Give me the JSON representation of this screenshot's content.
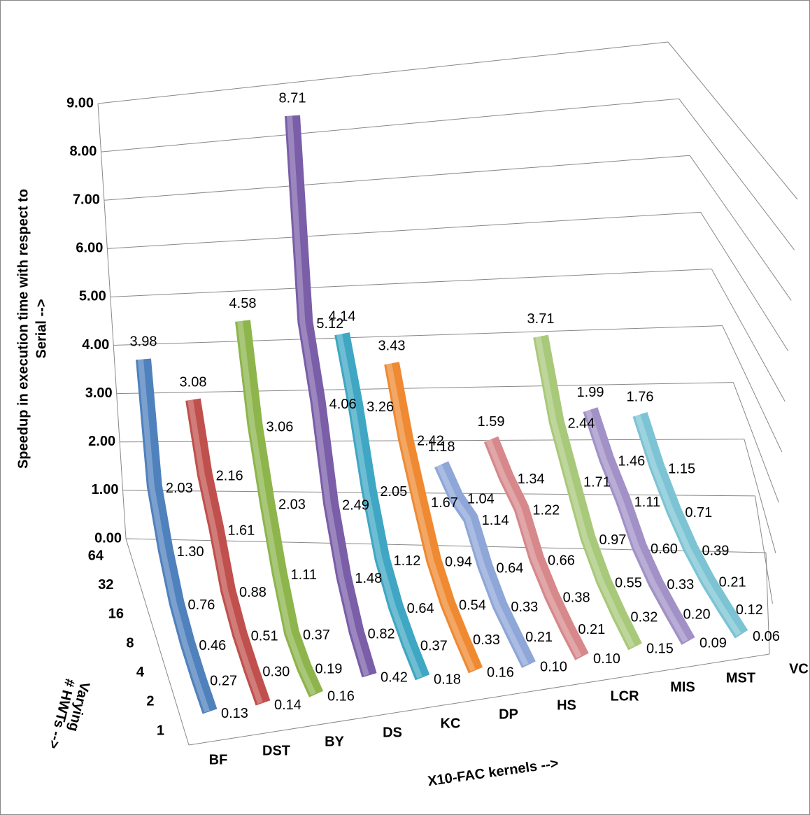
{
  "chart_data": {
    "type": "line",
    "ylabel": [
      "Speedup in execution time with respect to",
      "Serial -->"
    ],
    "xlabel": "X10-FAC kernels -->",
    "depth_label": [
      "Varying",
      "# HWTs -->"
    ],
    "categories": [
      "1",
      "2",
      "4",
      "8",
      "16",
      "32",
      "64"
    ],
    "ylim": [
      0,
      9
    ],
    "yticks": [
      {
        "value": 0,
        "label": "0.00"
      },
      {
        "value": 1,
        "label": "1.00"
      },
      {
        "value": 2,
        "label": "2.00"
      },
      {
        "value": 3,
        "label": "3.00"
      },
      {
        "value": 4,
        "label": "4.00"
      },
      {
        "value": 5,
        "label": "5.00"
      },
      {
        "value": 6,
        "label": "6.00"
      },
      {
        "value": 7,
        "label": "7.00"
      },
      {
        "value": 8,
        "label": "8.00"
      },
      {
        "value": 9,
        "label": "9.00"
      }
    ],
    "grid": true,
    "series": [
      {
        "name": "BF",
        "color": "#4f81bd",
        "values": [
          0.13,
          0.27,
          0.46,
          0.76,
          1.3,
          2.03,
          3.98
        ],
        "value_labels": [
          "0.13",
          "0.27",
          "0.46",
          "0.76",
          "1.30",
          "2.03",
          "3.98"
        ]
      },
      {
        "name": "DST",
        "color": "#c0504d",
        "values": [
          0.14,
          0.3,
          0.51,
          0.88,
          1.61,
          2.16,
          3.08
        ],
        "value_labels": [
          "0.14",
          "0.30",
          "0.51",
          "0.88",
          "1.61",
          "2.16",
          "3.08"
        ]
      },
      {
        "name": "BY",
        "color": "#8db54c",
        "values": [
          0.16,
          0.19,
          0.37,
          1.11,
          2.03,
          3.06,
          4.58
        ],
        "value_labels": [
          "0.16",
          "0.19",
          "0.37",
          "1.11",
          "2.03",
          "3.06",
          "4.58"
        ]
      },
      {
        "name": "DS",
        "color": "#7a5ea8",
        "values": [
          0.42,
          0.82,
          1.48,
          2.49,
          4.06,
          5.12,
          8.71
        ],
        "value_labels": [
          "0.42",
          "0.82",
          "1.48",
          "2.49",
          "4.06",
          "5.12",
          "8.71"
        ]
      },
      {
        "name": "KC",
        "color": "#3fa7c3",
        "values": [
          0.18,
          0.37,
          0.64,
          1.12,
          2.05,
          3.26,
          4.14
        ],
        "value_labels": [
          "0.18",
          "0.37",
          "0.64",
          "1.12",
          "2.05",
          "3.26",
          "4.14"
        ]
      },
      {
        "name": "DP",
        "color": "#ef8a32",
        "values": [
          0.16,
          0.33,
          0.54,
          0.94,
          1.67,
          2.42,
          3.43
        ],
        "value_labels": [
          "0.16",
          "0.33",
          "0.54",
          "0.94",
          "1.67",
          "2.42",
          "3.43"
        ]
      },
      {
        "name": "HS",
        "color": "#8ea6d8",
        "values": [
          0.1,
          0.21,
          0.33,
          0.64,
          1.14,
          1.04,
          1.18
        ],
        "value_labels": [
          "0.10",
          "0.21",
          "0.33",
          "0.64",
          "1.14",
          "1.04",
          "1.18"
        ]
      },
      {
        "name": "LCR",
        "color": "#d7888a",
        "values": [
          0.1,
          0.21,
          0.38,
          0.66,
          1.22,
          1.34,
          1.59
        ],
        "value_labels": [
          "0.10",
          "0.21",
          "0.38",
          "0.66",
          "1.22",
          "1.34",
          "1.59"
        ]
      },
      {
        "name": "MIS",
        "color": "#a9c97a",
        "values": [
          0.15,
          0.32,
          0.55,
          0.97,
          1.71,
          2.44,
          3.71
        ],
        "value_labels": [
          "0.15",
          "0.32",
          "0.55",
          "0.97",
          "1.71",
          "2.44",
          "3.71"
        ]
      },
      {
        "name": "MST",
        "color": "#a291c7",
        "values": [
          0.09,
          0.2,
          0.33,
          0.6,
          1.11,
          1.46,
          1.99
        ],
        "value_labels": [
          "0.09",
          "0.20",
          "0.33",
          "0.60",
          "1.11",
          "1.46",
          "1.99"
        ]
      },
      {
        "name": "VC",
        "color": "#7cc4d4",
        "values": [
          0.06,
          0.12,
          0.21,
          0.39,
          0.71,
          1.15,
          1.76
        ],
        "value_labels": [
          "0.06",
          "0.12",
          "0.21",
          "0.39",
          "0.71",
          "1.15",
          "1.76"
        ]
      }
    ]
  }
}
